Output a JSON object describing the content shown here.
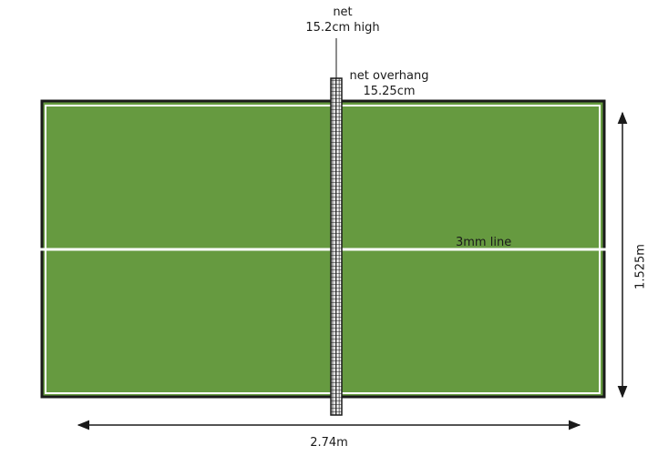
{
  "labels": {
    "net_title": "net",
    "net_height": "15.2cm high",
    "net_overhang_title": "net overhang",
    "net_overhang_value": "15.25cm",
    "center_line": "3mm line",
    "table_length": "2.74m",
    "table_width": "1.525m"
  },
  "colors": {
    "table_surface": "#669a40",
    "table_border": "#1a1a1a",
    "lines": "#ffffff",
    "net": "#1a1a1a"
  }
}
